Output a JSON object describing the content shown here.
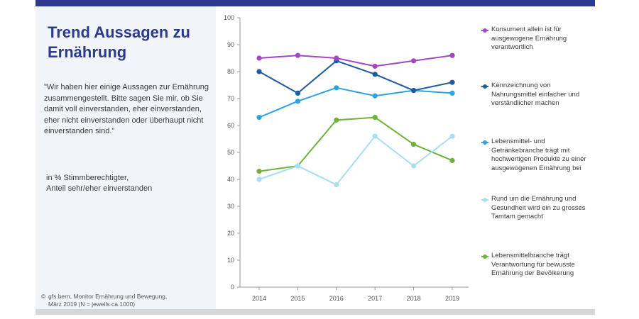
{
  "header": {
    "title_line1": "Trend Aussagen zu",
    "title_line2": "Ernährung"
  },
  "question": "\"Wir haben hier einige Aussagen zur Ernährung zusammengestellt. Bitte sagen Sie mir, ob Sie damit voll einverstanden, eher einverstanden, eher nicht einverstanden oder überhaupt nicht einverstanden sind.\"",
  "unit_line1": "in % Stimmberechtigter,",
  "unit_line2": "Anteil sehr/eher einverstanden",
  "source": {
    "symbol": "©",
    "line1": "gfs.bern, Monitor Ernährung und Bewegung,",
    "line2": "März 2019 (N = jeweils ca.1000)"
  },
  "chart_data": {
    "type": "line",
    "categories": [
      "2014",
      "2015",
      "2016",
      "2017",
      "2018",
      "2019"
    ],
    "ylim": [
      0,
      100
    ],
    "yticks": [
      "0",
      "10",
      "20",
      "30",
      "40",
      "50",
      "60",
      "70",
      "80",
      "90",
      "100"
    ],
    "series": [
      {
        "name": "Konsument allein ist für ausgewogene Ernährung verantwortlich",
        "color": "#a347c2",
        "values": [
          85,
          86,
          85,
          82,
          84,
          86
        ]
      },
      {
        "name": "Kennzeichnung von Nahrungsmittel einfacher und verständlicher machen",
        "color": "#1e5aa0",
        "values": [
          80,
          72,
          84,
          79,
          73,
          76
        ]
      },
      {
        "name": "Lebensmittel- und Getränkebranche trägt mit hochwertigen Produkte zu einer ausgewogenen Ernährung bei",
        "color": "#2fa3e0",
        "values": [
          63,
          69,
          74,
          71,
          73,
          72
        ]
      },
      {
        "name": "Rund um die Ernährung und Gesundheit wird ein zu grosses Tamtam gemacht",
        "color": "#a8def5",
        "values": [
          40,
          45,
          38,
          56,
          45,
          56
        ]
      },
      {
        "name": "Lebensmittelbranche trägt Verantwortung für bewusste Ernährung der Bevölkerung",
        "color": "#6fb23a",
        "values": [
          43,
          45,
          62,
          63,
          53,
          47
        ]
      }
    ]
  }
}
